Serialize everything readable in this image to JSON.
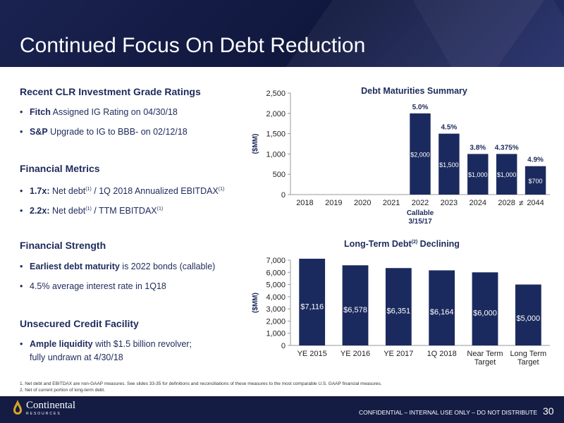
{
  "slide": {
    "title": "Continued Focus On Debt Reduction",
    "page_number": "30",
    "confidential": "CONFIDENTIAL – INTERNAL USE ONLY – DO NOT DISTRIBUTE",
    "logo_text": "Continental",
    "logo_subtext": "RESOURCES"
  },
  "left": {
    "ratings_head": "Recent CLR Investment Grade Ratings",
    "ratings": [
      {
        "bold": "Fitch",
        "text": " Assigned IG Rating on 04/30/18"
      },
      {
        "bold": "S&P",
        "text": " Upgrade to IG to BBB- on 02/12/18"
      }
    ],
    "metrics_head": "Financial Metrics",
    "metric1_bold": "1.7x:",
    "metric1_a": " Net debt",
    "metric1_b": " / 1Q 2018 Annualized EBITDAX",
    "metric2_bold": "2.2x:",
    "metric2_a": " Net debt",
    "metric2_b": " / TTM EBITDAX",
    "note_ref": "(1)",
    "strength_head": "Financial Strength",
    "strength1_bold": "Earliest debt maturity",
    "strength1_text": " is 2022 bonds (callable)",
    "strength2": "4.5% average interest rate in 1Q18",
    "facility_head": "Unsecured Credit Facility",
    "facility1_bold": "Ample liquidity",
    "facility1_text": " with $1.5 billion revolver;",
    "facility1_line2": "fully undrawn at 4/30/18"
  },
  "footnotes": [
    "1.  Net debt and EBITDAX are non-GAAP measures. See slides 33-35 for definitions and reconciliations of these measures to the most comparable U.S. GAAP financial measures.",
    "2.  Net of current portion of long-term debt."
  ],
  "colors": {
    "bar": "#1b2a5e",
    "header": "#1a2250",
    "text": "#1d2a5c"
  },
  "chart_data": [
    {
      "type": "bar",
      "title": "Debt Maturities Summary",
      "ylabel": "($MM)",
      "ylim": [
        0,
        2500
      ],
      "yticks": [
        "0",
        "500",
        "1,000",
        "1,500",
        "2,000",
        "2,500"
      ],
      "ytick_values": [
        0,
        500,
        1000,
        1500,
        2000,
        2500
      ],
      "categories": [
        "2018",
        "2019",
        "2020",
        "2021",
        "2022",
        "2023",
        "2024",
        "2028",
        "2044"
      ],
      "values": [
        0,
        0,
        0,
        0,
        2000,
        1500,
        1000,
        1000,
        700
      ],
      "value_labels": [
        "",
        "",
        "",
        "",
        "$2,000",
        "$1,500",
        "$1,000",
        "$1,000",
        "$700"
      ],
      "rate_labels": [
        "",
        "",
        "",
        "",
        "5.0%",
        "4.5%",
        "3.8%",
        "4.375%",
        "4.9%"
      ],
      "annotation_line1": "Callable",
      "annotation_line2": "3/15/17",
      "axis_break": "≠",
      "grid": false
    },
    {
      "type": "bar",
      "title": "Long-Term Debt",
      "title_sup": "(2)",
      "title_suffix": " Declining",
      "ylabel": "($MM)",
      "ylim": [
        0,
        7000
      ],
      "yticks": [
        "0",
        "1,000",
        "2,000",
        "3,000",
        "4,000",
        "5,000",
        "6,000",
        "7,000"
      ],
      "ytick_values": [
        0,
        1000,
        2000,
        3000,
        4000,
        5000,
        6000,
        7000
      ],
      "categories": [
        "YE 2015",
        "YE 2016",
        "YE 2017",
        "1Q 2018",
        "Near Term|Target",
        "Long Term|Target"
      ],
      "values": [
        7116,
        6578,
        6351,
        6164,
        6000,
        5000
      ],
      "value_labels": [
        "$7,116",
        "$6,578",
        "$6,351",
        "$6,164",
        "$6,000",
        "$5,000"
      ],
      "grid": false
    }
  ]
}
